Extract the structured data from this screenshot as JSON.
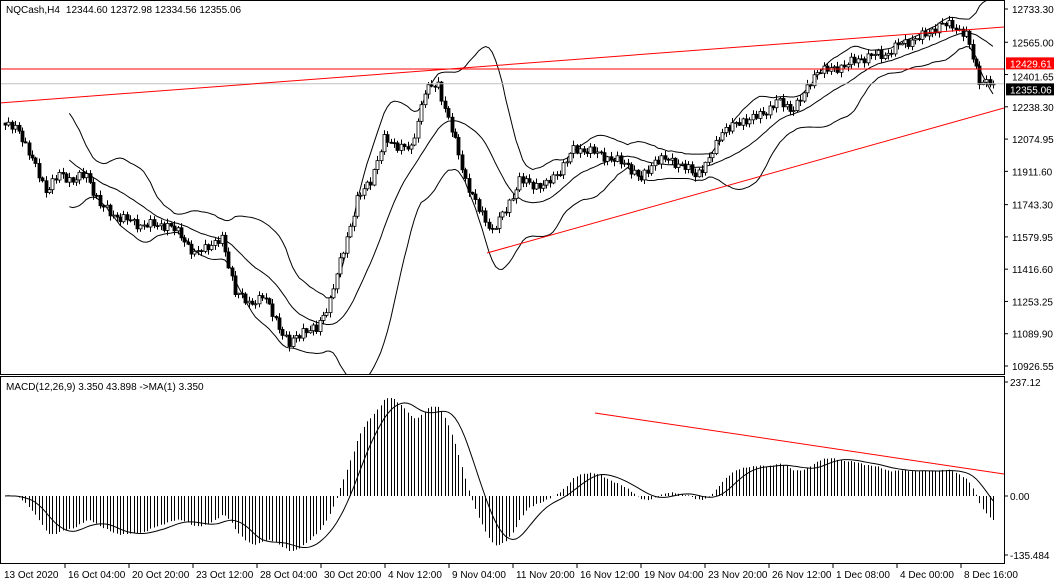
{
  "header": {
    "symbol_timeframe": "NQCash,H4",
    "ohlc": "12344.60 12372.98 12334.56 12355.06"
  },
  "indicator": {
    "label": "MACD(12,26,9) 3.350 43.898  ->MA(1) 3.350"
  },
  "colors": {
    "background": "#ffffff",
    "candles": "#000000",
    "trendline": "#ff0000",
    "bid_line": "#c0c0c0",
    "level_badge": "#ff0000",
    "price_badge": "#000000"
  },
  "chart_data": {
    "type": "candlestick",
    "price_axis": {
      "ticks": [
        "12733.30",
        "12565.00",
        "12401.65",
        "12238.30",
        "12074.95",
        "11911.60",
        "11743.30",
        "11579.95",
        "11416.60",
        "11253.25",
        "11089.90",
        "10926.55"
      ],
      "range": [
        10926.55,
        12733.3
      ]
    },
    "time_axis": {
      "ticks": [
        "13 Oct 2020",
        "16 Oct 04:00",
        "20 Oct 20:00",
        "23 Oct 12:00",
        "28 Oct 04:00",
        "30 Oct 20:00",
        "4 Nov 12:00",
        "9 Nov 04:00",
        "11 Nov 20:00",
        "16 Nov 12:00",
        "19 Nov 04:00",
        "23 Nov 20:00",
        "26 Nov 12:00",
        "1 Dec 08:00",
        "4 Dec 00:00",
        "8 Dec 16:00"
      ]
    },
    "close_path": [
      12146,
      12121,
      11969,
      11817,
      11893,
      11868,
      11893,
      11741,
      11690,
      11665,
      11640,
      11640,
      11640,
      11589,
      11488,
      11538,
      11564,
      11311,
      11235,
      11286,
      11159,
      11033,
      11109,
      11109,
      11260,
      11514,
      11767,
      11868,
      12070,
      12045,
      12020,
      12323,
      12348,
      12121,
      11868,
      11716,
      11614,
      11716,
      11868,
      11843,
      11843,
      11918,
      12020,
      12020,
      11994,
      11969,
      11944,
      11868,
      11969,
      11969,
      11944,
      11893,
      11969,
      12121,
      12146,
      12182,
      12197,
      12272,
      12222,
      12298,
      12424,
      12424,
      12450,
      12475,
      12500,
      12500,
      12551,
      12576,
      12601,
      12652,
      12652,
      12601,
      12374,
      12355
    ],
    "horizontal_level": {
      "price": 12429.61,
      "label": "12429.61"
    },
    "current_price": {
      "price": 12355.06,
      "label": "12355.06"
    },
    "indicators": [
      "Bollinger Bands(20,2)",
      "MACD(12,26,9)"
    ],
    "macd_axis": {
      "ticks": [
        "237.12",
        "0.00",
        "-135.484"
      ],
      "range": [
        -135.484,
        237.12
      ]
    },
    "grid": false
  }
}
